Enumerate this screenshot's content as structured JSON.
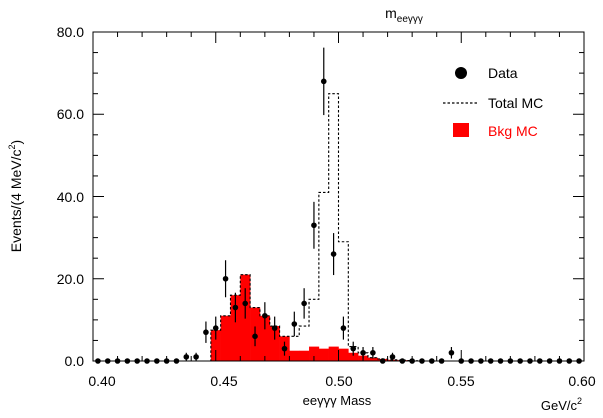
{
  "chart_data": {
    "type": "histogram",
    "title_base": "m",
    "title_sub": "eeγγγ",
    "xlabel": "eeγγγ Mass",
    "xunit_base": "GeV/c",
    "xunit_sup": "2",
    "ylabel_base": "Events/(4 MeV/c",
    "ylabel_sup": "2",
    "ylabel_close": ")",
    "xlim": [
      0.4,
      0.6
    ],
    "ylim": [
      0,
      80
    ],
    "bin_width": 0.004,
    "xticks": [
      "0.40",
      "0.45",
      "0.50",
      "0.55",
      "0.60"
    ],
    "yticks": [
      "0.0",
      "20.0",
      "40.0",
      "60.0",
      "80.0"
    ],
    "legend": {
      "position": "top-right",
      "data_label": "Data",
      "total_label": "Total MC",
      "bkg_label": "Bkg MC"
    },
    "colors": {
      "bkg": "#ff0000",
      "total": "#000000",
      "data": "#000000"
    },
    "bkg_mc": [
      0,
      0,
      0,
      0,
      0,
      0,
      0,
      0,
      0,
      0,
      0,
      0,
      7.5,
      11,
      16,
      21,
      13,
      11,
      8.5,
      6,
      2.5,
      2.5,
      3.5,
      3,
      3.5,
      3,
      2,
      1.3,
      0.8,
      0.5,
      0.3,
      0.2,
      0.1,
      0,
      0,
      0,
      0,
      0,
      0,
      0,
      0,
      0,
      0,
      0,
      0,
      0,
      0,
      0,
      0,
      0
    ],
    "total_mc": [
      0,
      0,
      0,
      0,
      0,
      0,
      0,
      0,
      0,
      0,
      0,
      0,
      7.5,
      11,
      16,
      21,
      13,
      11,
      8.5,
      6,
      6,
      8.5,
      15,
      41,
      65,
      29,
      3.5,
      2,
      0.8,
      0.5,
      0.3,
      0.2,
      0.1,
      0,
      0,
      0,
      0,
      0,
      0,
      0,
      0,
      0,
      0,
      0,
      0,
      0,
      0,
      0,
      0,
      0
    ],
    "data_points": [
      {
        "x": 0.402,
        "y": 0,
        "err": 0
      },
      {
        "x": 0.406,
        "y": 0,
        "err": 0
      },
      {
        "x": 0.41,
        "y": 0,
        "err": 0
      },
      {
        "x": 0.414,
        "y": 0,
        "err": 0
      },
      {
        "x": 0.418,
        "y": 0,
        "err": 0
      },
      {
        "x": 0.422,
        "y": 0,
        "err": 0
      },
      {
        "x": 0.426,
        "y": 0,
        "err": 0
      },
      {
        "x": 0.43,
        "y": 0,
        "err": 0
      },
      {
        "x": 0.434,
        "y": 0,
        "err": 0
      },
      {
        "x": 0.438,
        "y": 1,
        "err": 1
      },
      {
        "x": 0.442,
        "y": 1,
        "err": 1
      },
      {
        "x": 0.446,
        "y": 7,
        "err": 2.6
      },
      {
        "x": 0.45,
        "y": 8,
        "err": 2.8
      },
      {
        "x": 0.454,
        "y": 20,
        "err": 4.5
      },
      {
        "x": 0.458,
        "y": 13,
        "err": 3.6
      },
      {
        "x": 0.462,
        "y": 14,
        "err": 3.7
      },
      {
        "x": 0.466,
        "y": 6,
        "err": 2.4
      },
      {
        "x": 0.47,
        "y": 11,
        "err": 3.3
      },
      {
        "x": 0.474,
        "y": 8,
        "err": 2.8
      },
      {
        "x": 0.478,
        "y": 3,
        "err": 1.7
      },
      {
        "x": 0.482,
        "y": 9,
        "err": 3
      },
      {
        "x": 0.486,
        "y": 14,
        "err": 3.7
      },
      {
        "x": 0.49,
        "y": 33,
        "err": 5.7
      },
      {
        "x": 0.494,
        "y": 68,
        "err": 8.2
      },
      {
        "x": 0.498,
        "y": 26,
        "err": 5.1
      },
      {
        "x": 0.502,
        "y": 8,
        "err": 2.8
      },
      {
        "x": 0.506,
        "y": 3,
        "err": 1.7
      },
      {
        "x": 0.51,
        "y": 2,
        "err": 1.4
      },
      {
        "x": 0.514,
        "y": 2,
        "err": 1.4
      },
      {
        "x": 0.518,
        "y": 0,
        "err": 0
      },
      {
        "x": 0.522,
        "y": 1,
        "err": 1
      },
      {
        "x": 0.526,
        "y": 0,
        "err": 0
      },
      {
        "x": 0.53,
        "y": 0,
        "err": 0
      },
      {
        "x": 0.534,
        "y": 0,
        "err": 0
      },
      {
        "x": 0.538,
        "y": 0,
        "err": 0
      },
      {
        "x": 0.542,
        "y": 0,
        "err": 0
      },
      {
        "x": 0.546,
        "y": 2,
        "err": 1.4
      },
      {
        "x": 0.55,
        "y": 0,
        "err": 0
      },
      {
        "x": 0.554,
        "y": 0,
        "err": 0
      },
      {
        "x": 0.558,
        "y": 0,
        "err": 0
      },
      {
        "x": 0.562,
        "y": 0,
        "err": 0
      },
      {
        "x": 0.566,
        "y": 0,
        "err": 0
      },
      {
        "x": 0.57,
        "y": 0,
        "err": 0
      },
      {
        "x": 0.574,
        "y": 0,
        "err": 0
      },
      {
        "x": 0.578,
        "y": 0,
        "err": 0
      },
      {
        "x": 0.582,
        "y": 0,
        "err": 0
      },
      {
        "x": 0.586,
        "y": 0,
        "err": 0
      },
      {
        "x": 0.59,
        "y": 0,
        "err": 0
      },
      {
        "x": 0.594,
        "y": 0,
        "err": 0
      },
      {
        "x": 0.598,
        "y": 0,
        "err": 0
      }
    ]
  }
}
